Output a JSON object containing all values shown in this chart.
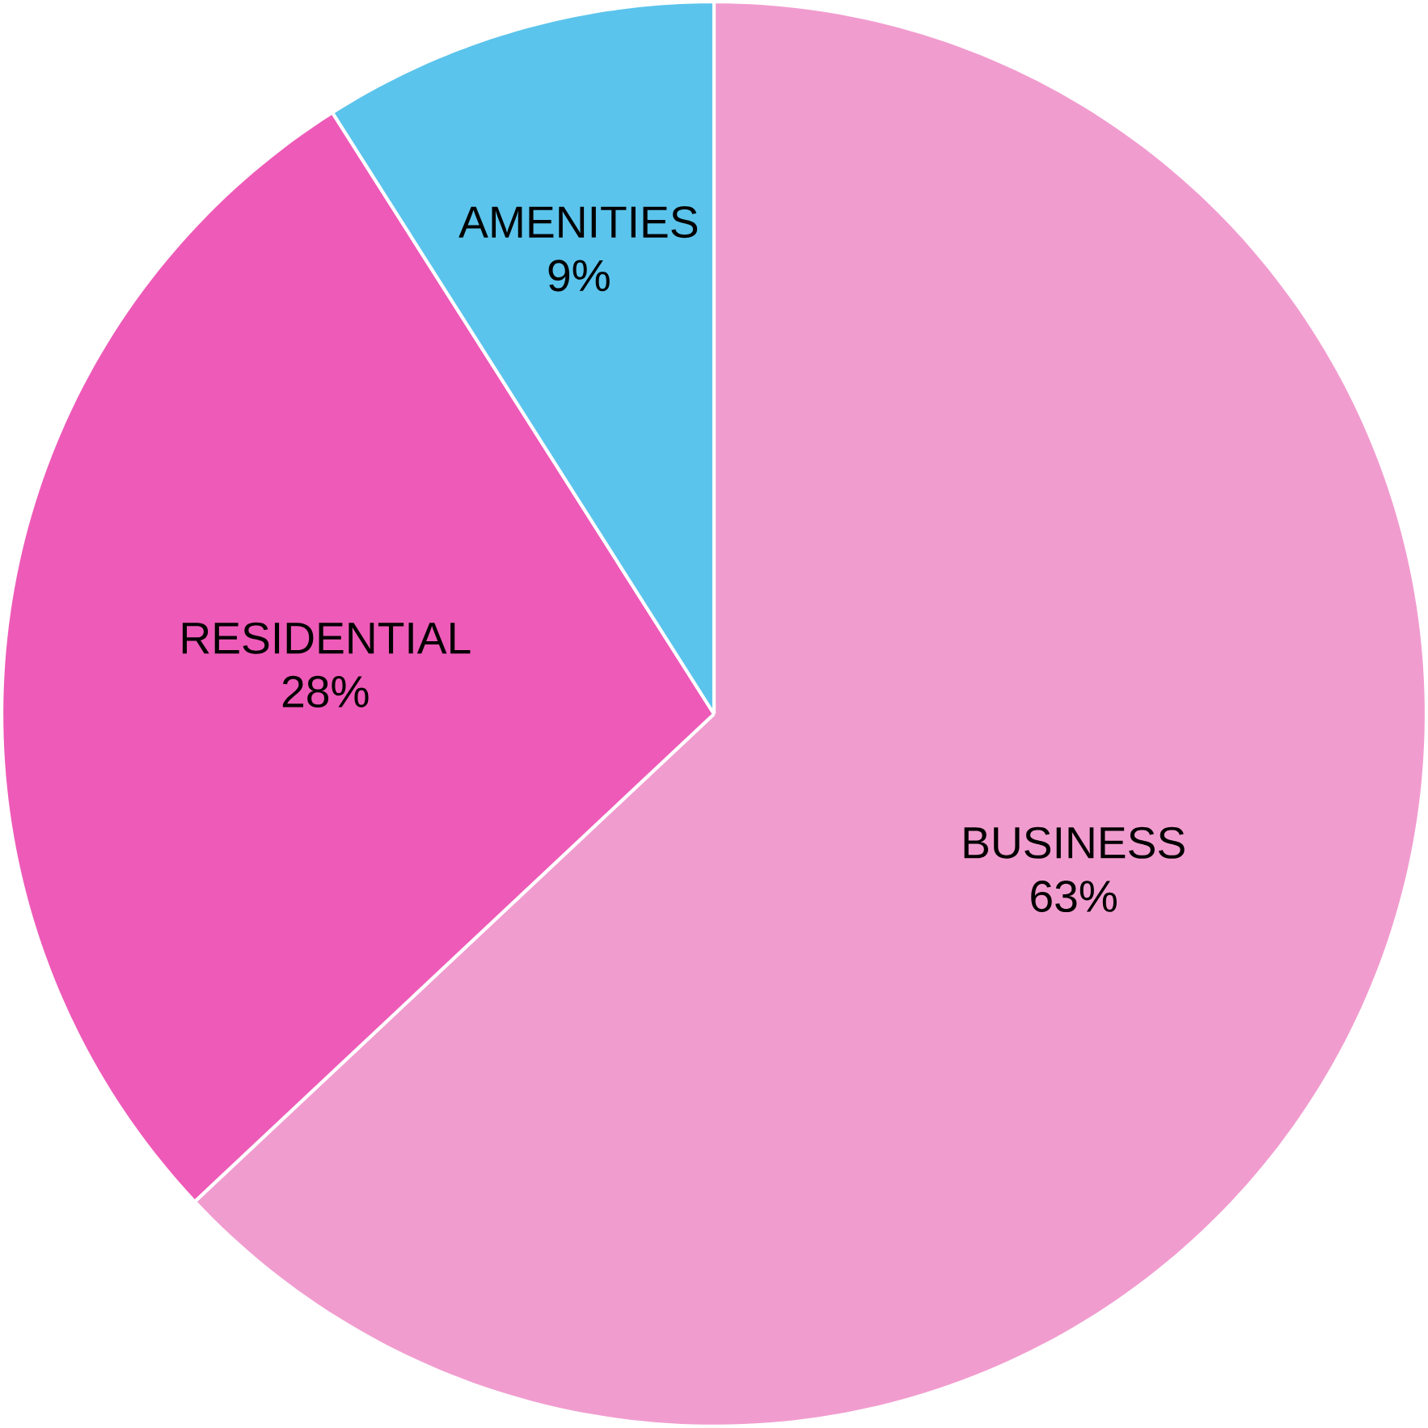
{
  "chart_data": {
    "type": "pie",
    "categories": [
      "BUSINESS",
      "RESIDENTIAL",
      "AMENITIES"
    ],
    "values": [
      63,
      28,
      9
    ],
    "value_labels": [
      "63%",
      "28%",
      "9%"
    ],
    "colors": [
      "#f19ccf",
      "#ee5ab8",
      "#5bc4ec"
    ]
  }
}
